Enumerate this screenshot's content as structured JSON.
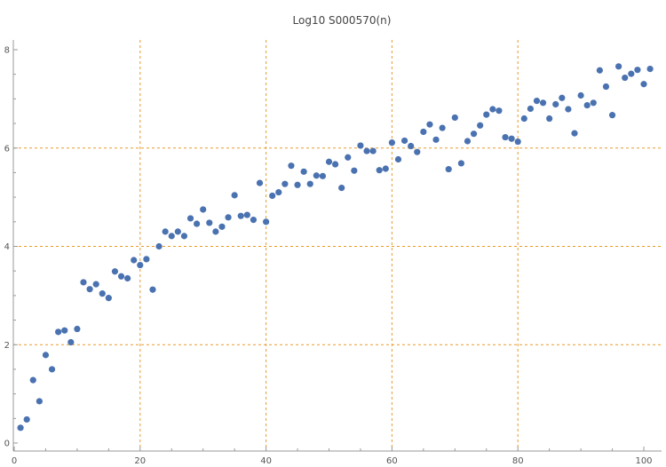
{
  "chart_data": {
    "type": "scatter",
    "title": "Log10 S000570(n)",
    "xlabel": "",
    "ylabel": "",
    "xlim": [
      0,
      102
    ],
    "ylim": [
      0,
      8.1
    ],
    "x_ticks": [
      0,
      20,
      40,
      60,
      80,
      100
    ],
    "y_ticks": [
      0,
      2,
      4,
      6,
      8
    ],
    "x_grid": [
      20,
      40,
      60,
      80
    ],
    "y_grid": [
      2,
      4,
      6
    ],
    "grid_color": "#e89a2c",
    "point_color": "#4a72b0",
    "series": [
      {
        "x": [
          1,
          2,
          3,
          4,
          5,
          6,
          7,
          8,
          9,
          10,
          11,
          12,
          13,
          14,
          15,
          16,
          17,
          18,
          19,
          20,
          21,
          22,
          23,
          24,
          25,
          26,
          27,
          28,
          29,
          30,
          31,
          32,
          33,
          34,
          35,
          36,
          37,
          38,
          39,
          40,
          41,
          42,
          43,
          44,
          45,
          46,
          47,
          48,
          49,
          50,
          51,
          52,
          53,
          54,
          55,
          56,
          57,
          58,
          59,
          60,
          61,
          62,
          63,
          64,
          65,
          66,
          67,
          68,
          69,
          70,
          71,
          72,
          73,
          74,
          75,
          76,
          77,
          78,
          79,
          80,
          81,
          82,
          83,
          84,
          85,
          86,
          87,
          88,
          89,
          90,
          91,
          92,
          93,
          94,
          95,
          96,
          97,
          98,
          99,
          100,
          101
        ],
        "y": [
          0.31,
          0.48,
          1.28,
          0.85,
          1.79,
          1.5,
          2.26,
          2.29,
          2.05,
          2.32,
          3.27,
          3.13,
          3.23,
          3.04,
          2.95,
          3.49,
          3.39,
          3.35,
          3.72,
          3.62,
          3.74,
          3.12,
          4.0,
          4.3,
          4.21,
          4.3,
          4.21,
          4.57,
          4.46,
          4.75,
          4.48,
          4.3,
          4.4,
          4.59,
          5.04,
          4.62,
          4.64,
          4.54,
          5.29,
          4.5,
          5.03,
          5.1,
          5.27,
          5.64,
          5.25,
          5.52,
          5.27,
          5.44,
          5.43,
          5.72,
          5.67,
          5.19,
          5.81,
          5.54,
          6.05,
          5.94,
          5.94,
          5.55,
          5.58,
          6.11,
          5.77,
          6.15,
          6.04,
          5.92,
          6.33,
          6.48,
          6.17,
          6.41,
          5.57,
          6.62,
          5.69,
          6.14,
          6.29,
          6.46,
          6.68,
          6.79,
          6.76,
          6.22,
          6.19,
          6.13,
          6.6,
          6.8,
          6.96,
          6.92,
          6.6,
          6.89,
          7.02,
          6.79,
          6.3,
          7.07,
          6.87,
          6.92,
          7.58,
          7.25,
          6.67,
          7.66,
          7.43,
          7.51,
          7.59,
          7.3,
          7.61
        ]
      }
    ]
  }
}
